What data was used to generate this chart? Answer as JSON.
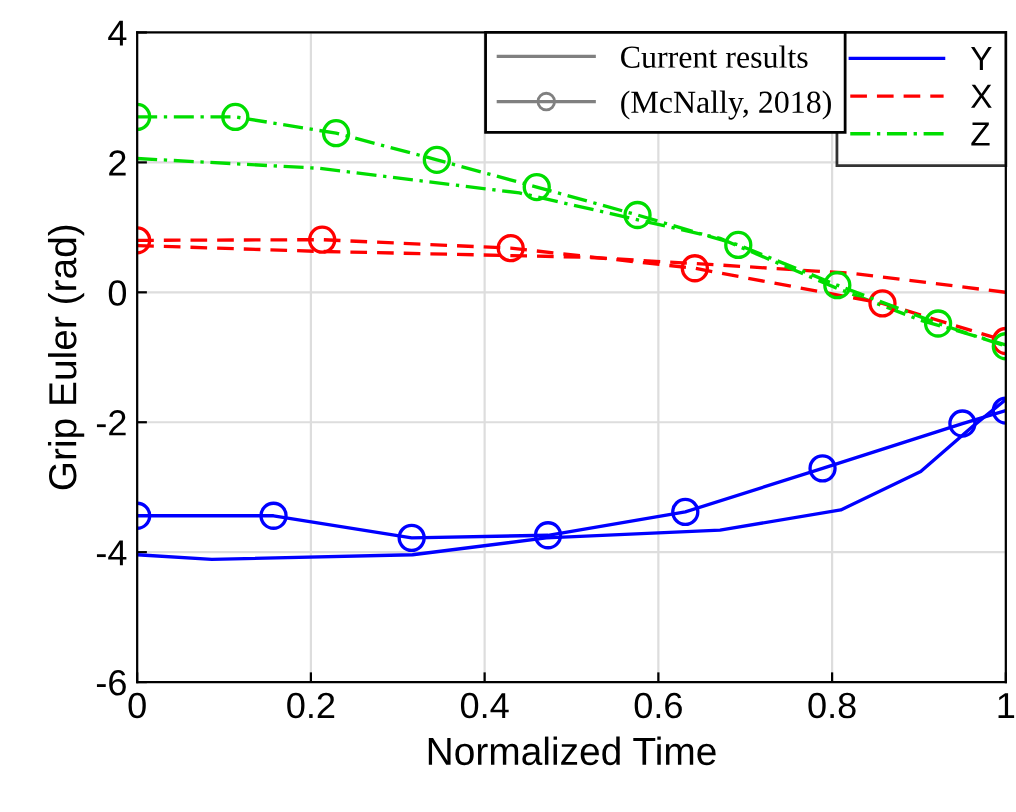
{
  "chart_data": {
    "type": "line",
    "xlabel": "Normalized Time",
    "ylabel": "Grip Euler (rad)",
    "xlim": [
      0,
      1
    ],
    "ylim": [
      -6,
      4
    ],
    "xticks": [
      0,
      0.2,
      0.4,
      0.6,
      0.8,
      1
    ],
    "yticks": [
      -6,
      -4,
      -2,
      0,
      2,
      4
    ],
    "grid": true,
    "legend": "top right",
    "annotations": [
      "Current results",
      "(McNally, 2018)"
    ],
    "series": [
      {
        "name": "Y",
        "color": "#0000ff",
        "line_style": "solid",
        "marker": "none",
        "x": [
          0,
          0.086,
          0.317,
          0.471,
          0.671,
          0.81,
          0.902,
          0.964,
          1
        ],
        "values": [
          -4.04,
          -4.11,
          -4.04,
          -3.78,
          -3.66,
          -3.35,
          -2.76,
          -2.04,
          -1.65
        ]
      },
      {
        "name": "X",
        "color": "#ff0000",
        "line_style": "dashed",
        "marker": "none",
        "x": [
          0,
          0.209,
          0.517,
          0.671,
          0.825,
          1
        ],
        "values": [
          0.72,
          0.63,
          0.54,
          0.42,
          0.29,
          0
        ]
      },
      {
        "name": "Z",
        "color": "#00dd00",
        "line_style": "dashdot",
        "marker": "none",
        "x": [
          0,
          0.209,
          0.44,
          0.671,
          0.806,
          0.902,
          1
        ],
        "values": [
          2.06,
          1.91,
          1.53,
          0.83,
          0.06,
          -0.43,
          -0.81
        ]
      },
      {
        "color": "#0000ff",
        "line_style": "solid",
        "marker": "circle",
        "x": [
          0,
          0.157,
          0.316,
          0.473,
          0.631,
          0.789,
          0.95,
          1
        ],
        "values": [
          -3.44,
          -3.44,
          -3.78,
          -3.74,
          -3.38,
          -2.71,
          -2.02,
          -1.82
        ]
      },
      {
        "color": "#ff0000",
        "line_style": "dashed",
        "marker": "circle",
        "x": [
          0,
          0.213,
          0.43,
          0.642,
          0.858,
          1
        ],
        "values": [
          0.8,
          0.81,
          0.68,
          0.37,
          -0.17,
          -0.75
        ]
      },
      {
        "color": "#00dd00",
        "line_style": "dashdot",
        "marker": "circle",
        "x": [
          0,
          0.113,
          0.229,
          0.345,
          0.46,
          0.576,
          0.692,
          0.806,
          0.922,
          1
        ],
        "values": [
          2.7,
          2.7,
          2.45,
          2.04,
          1.62,
          1.19,
          0.73,
          0.11,
          -0.48,
          -0.83
        ]
      }
    ]
  }
}
